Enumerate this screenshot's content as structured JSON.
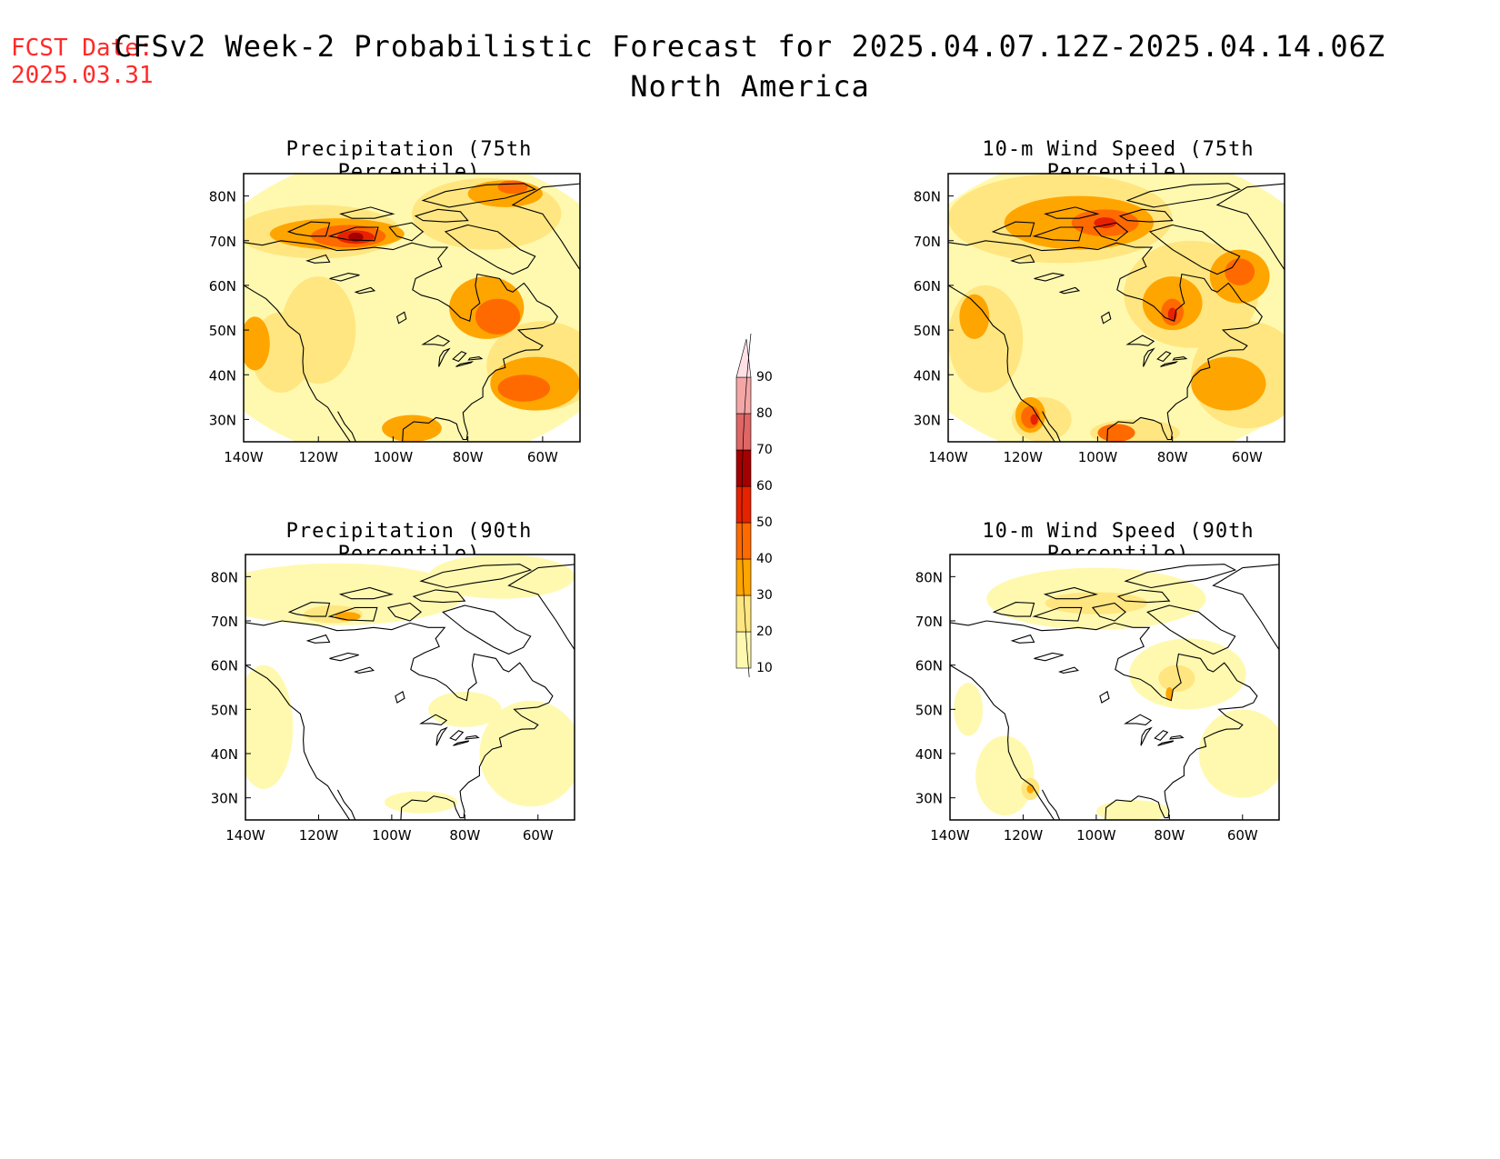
{
  "header": {
    "fcst_label": "FCST Date:",
    "fcst_date": "2025.03.31",
    "title": "CFSv2 Week-2 Probabilistic Forecast for 2025.04.07.12Z-2025.04.14.06Z",
    "subtitle": "North America"
  },
  "panels": [
    {
      "title": "Precipitation (75th Percentile)",
      "variable": "precipitation",
      "percentile": 75
    },
    {
      "title": "10-m Wind Speed (75th Percentile)",
      "variable": "wind",
      "percentile": 75
    },
    {
      "title": "Precipitation (90th Percentile)",
      "variable": "precipitation",
      "percentile": 90
    },
    {
      "title": "10-m Wind Speed (90th Percentile)",
      "variable": "wind",
      "percentile": 90
    }
  ],
  "map_axes": {
    "lat_labels": [
      "80N",
      "70N",
      "60N",
      "50N",
      "40N",
      "30N"
    ],
    "lon_labels": [
      "140W",
      "120W",
      "100W",
      "80W",
      "60W"
    ],
    "lat_range": [
      25,
      85
    ],
    "lon_range": [
      -140,
      -50
    ]
  },
  "colorbar": {
    "levels": [
      "10",
      "20",
      "30",
      "40",
      "50",
      "60",
      "70",
      "80",
      "90"
    ],
    "colors": [
      "#fff9b0",
      "#ffe680",
      "#ffa500",
      "#ff6a00",
      "#e62200",
      "#a50000",
      "#e06666",
      "#f4a6a6",
      "#ffe0e6"
    ]
  }
}
